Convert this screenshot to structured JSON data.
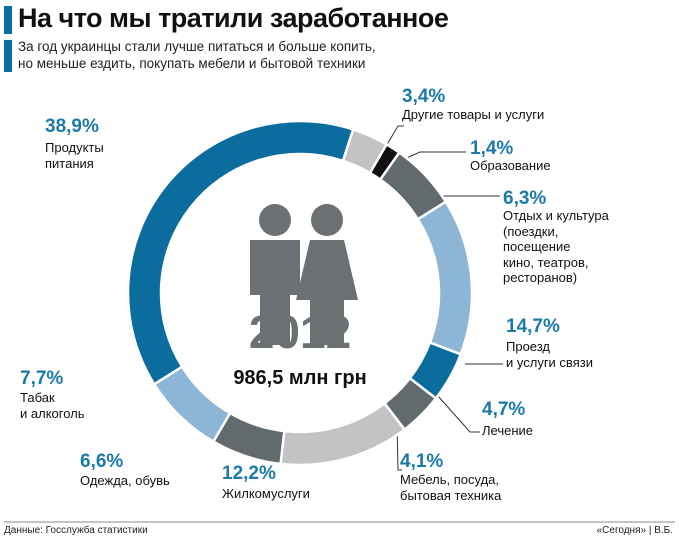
{
  "chart_data": {
    "type": "donut",
    "title": "На что мы тратили заработанное",
    "subtitle": "За год украинцы стали лучше питаться и больше копить,\nно меньше ездить, покупать мебели и бытовой техники",
    "center_title": "2012",
    "center_label": "986,5 млн грн",
    "source": "Данные: Госслужба статистики",
    "credit": "«Сегодня» | В.Б.",
    "categories": [
      "Другие товары и услуги",
      "Образование",
      "Отдых и культура\n(поездки,\nпосещение\nкино, театров,\nресторанов)",
      "Проезд\nи услуги связи",
      "Лечение",
      "Мебель, посуда,\nбытовая техника",
      "Жилкомуслуги",
      "Одежда, обувь",
      "Табак\nи алкоголь",
      "Продукты\nпитания"
    ],
    "values": [
      3.4,
      1.4,
      6.3,
      14.7,
      4.7,
      4.1,
      12.2,
      6.6,
      7.7,
      38.9
    ],
    "value_labels": [
      "3,4%",
      "1,4%",
      "6,3%",
      "14,7%",
      "4,7%",
      "4,1%",
      "12,2%",
      "6,6%",
      "7,7%",
      "38,9%"
    ],
    "colors": [
      "#c3c3c3",
      "#111111",
      "#636a6d",
      "#8db6d6",
      "#0a6d9e",
      "#636a6d",
      "#c3c3c3",
      "#636a6d",
      "#8db6d6",
      "#0a6d9e"
    ]
  }
}
